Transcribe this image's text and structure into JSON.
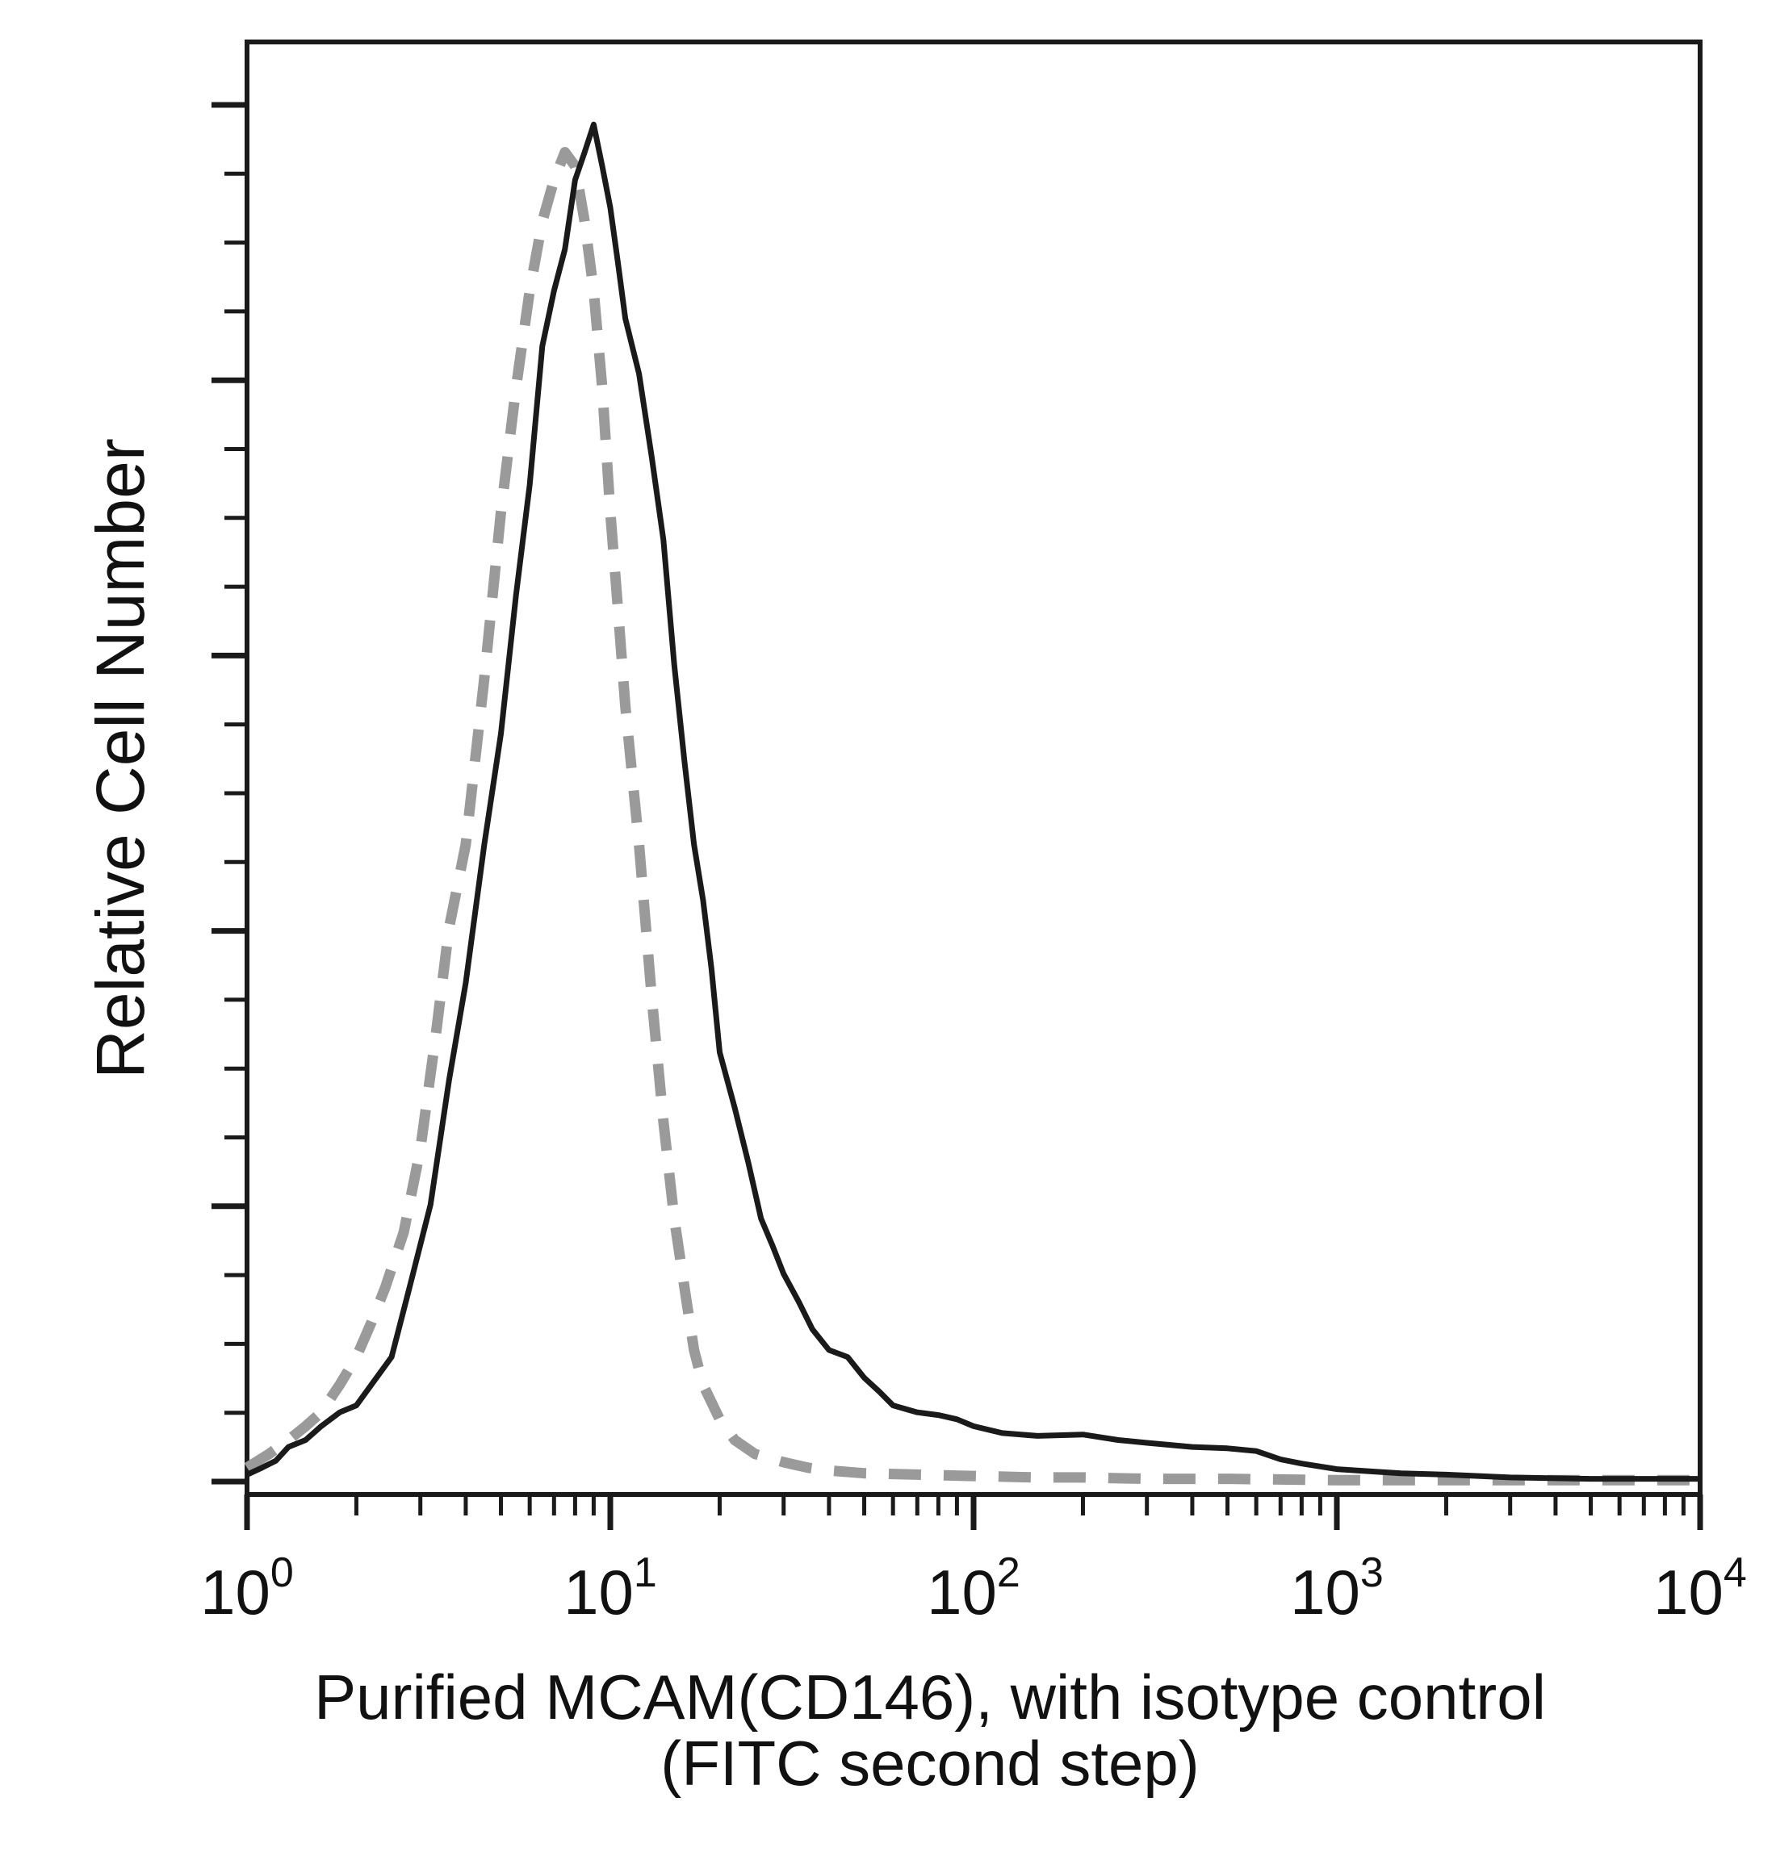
{
  "chart_data": {
    "type": "line",
    "title": "",
    "xlabel_line1": "Purified MCAM(CD146), with isotype control",
    "xlabel_line2": "(FITC second step)",
    "ylabel": "Relative Cell Number",
    "x_scale": "log",
    "xlim": [
      1,
      10000
    ],
    "ylim": [
      0,
      100
    ],
    "grid": false,
    "legend": "none",
    "x_ticks": [
      {
        "base": "10",
        "exp": "0"
      },
      {
        "base": "10",
        "exp": "1"
      },
      {
        "base": "10",
        "exp": "2"
      },
      {
        "base": "10",
        "exp": "3"
      },
      {
        "base": "10",
        "exp": "4"
      }
    ],
    "series": [
      {
        "style": "solid",
        "color": "#1a1a1a",
        "x": [
          1.0,
          1.1,
          1.2,
          1.3,
          1.45,
          1.6,
          1.8,
          2.0,
          2.2,
          2.5,
          2.8,
          3.2,
          3.6,
          4.0,
          4.5,
          5.0,
          5.5,
          6.0,
          6.5,
          7.0,
          7.5,
          8.0,
          8.5,
          9.0,
          9.5,
          10.0,
          10.5,
          11,
          12,
          13,
          14,
          15,
          16,
          17,
          18,
          19,
          20,
          22,
          24,
          26,
          28,
          30,
          33,
          36,
          40,
          45,
          50,
          55,
          60,
          70,
          80,
          90,
          100,
          120,
          150,
          200,
          250,
          300,
          400,
          500,
          600,
          700,
          800,
          1000,
          1500,
          2000,
          3000,
          5000,
          10000
        ],
        "y": [
          0.5,
          1,
          1.5,
          2.5,
          3,
          4,
          5,
          5.5,
          7,
          9,
          14,
          20,
          29,
          36,
          46,
          54,
          64,
          72,
          82,
          86,
          89,
          94,
          96,
          98,
          95,
          92,
          88,
          84,
          80,
          74,
          68,
          59,
          52,
          46,
          42,
          37,
          31,
          27,
          23,
          19,
          17,
          15,
          13,
          11,
          9.5,
          9,
          7.5,
          6.5,
          5.5,
          5,
          4.8,
          4.5,
          4,
          3.5,
          3.3,
          3.4,
          3,
          2.8,
          2.5,
          2.4,
          2.2,
          1.6,
          1.3,
          0.9,
          0.6,
          0.5,
          0.3,
          0.2,
          0.2
        ]
      },
      {
        "style": "dashed",
        "color": "#9a9a9a",
        "x": [
          1.0,
          1.15,
          1.3,
          1.45,
          1.6,
          1.8,
          2.0,
          2.2,
          2.4,
          2.7,
          3.0,
          3.3,
          3.6,
          4.0,
          4.5,
          5.0,
          5.5,
          6.0,
          6.5,
          7.0,
          7.5,
          8.0,
          8.5,
          9.0,
          9.5,
          10.0,
          10.5,
          11,
          12,
          13,
          14,
          15,
          16,
          17,
          18,
          20,
          22,
          25,
          30,
          35,
          40,
          50,
          70,
          100,
          150,
          200,
          300,
          500,
          1000,
          10000
        ],
        "y": [
          1,
          2,
          3,
          4,
          5,
          7,
          9,
          11.5,
          14,
          18,
          24,
          32,
          40,
          46,
          58,
          70,
          79,
          86,
          91,
          94,
          96,
          95,
          91,
          86,
          79,
          70,
          63,
          56,
          46,
          35,
          26,
          19,
          14,
          9.5,
          7,
          4.5,
          3,
          2,
          1.4,
          1,
          0.8,
          0.6,
          0.5,
          0.4,
          0.3,
          0.3,
          0.2,
          0.2,
          0.1,
          0.1
        ]
      }
    ]
  }
}
